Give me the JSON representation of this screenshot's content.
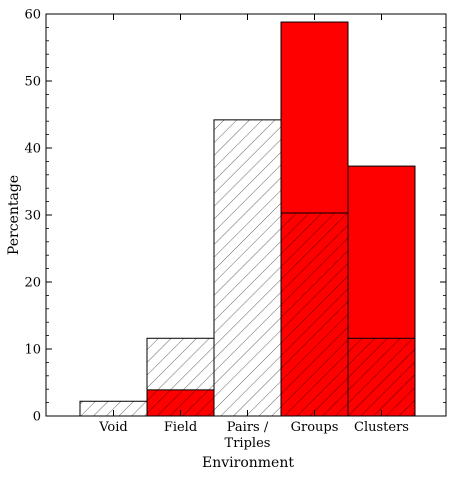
{
  "chart_data": {
    "type": "bar",
    "categories": [
      "Void",
      "Field",
      "Pairs /\nTriples",
      "Groups",
      "Clusters"
    ],
    "series": [
      {
        "values": [
          0,
          3.9,
          0,
          58.8,
          37.3
        ],
        "fill": "#ff0000",
        "hatch": false
      },
      {
        "values": [
          2.2,
          11.6,
          44.2,
          30.3,
          11.6
        ],
        "fill": "none",
        "hatch": true
      }
    ],
    "xlabel": "Environment",
    "ylabel": "Percentage",
    "ylim": [
      0,
      60
    ],
    "yticks": [
      0,
      10,
      20,
      30,
      40,
      50,
      60
    ],
    "grid": false,
    "legend": "none"
  }
}
